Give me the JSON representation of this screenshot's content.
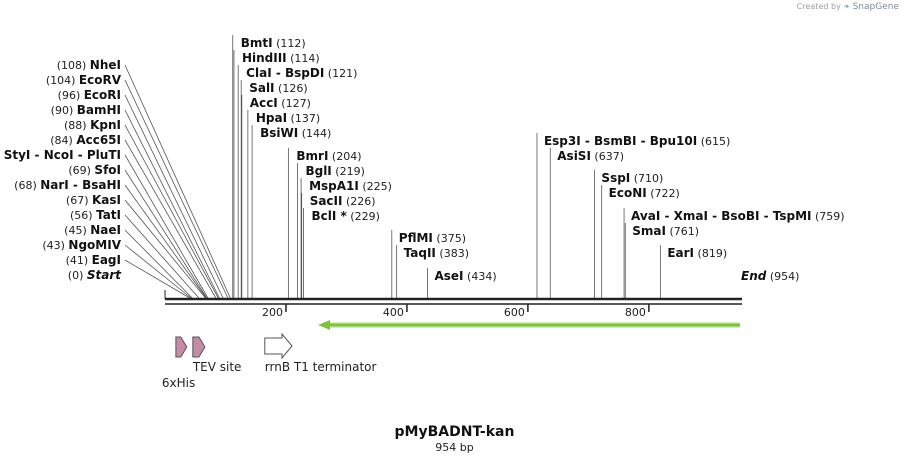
{
  "credit": {
    "prefix": "Created by",
    "brand": "SnapGene",
    "icon": "snapgene-leaf-icon"
  },
  "plasmid": {
    "name": "pMyBADNT-kan",
    "length_label": "954 bp",
    "length": 954
  },
  "colors": {
    "backbone": "#222222",
    "orf": "#7ec040",
    "orf_outline": "#d4ecb8",
    "his_tag": "#c48aa6",
    "tev_site": "#c48aa6",
    "terminator": "#ffffff"
  },
  "scale": {
    "ticks": [
      200,
      400,
      600,
      800
    ]
  },
  "left_sites": [
    {
      "pos": "(0)",
      "label": "Start",
      "loc": 0,
      "terminus": true
    },
    {
      "pos": "(41)",
      "label": "EagI",
      "loc": 41
    },
    {
      "pos": "(43)",
      "label": "NgoMIV",
      "loc": 43
    },
    {
      "pos": "(45)",
      "label": "NaeI",
      "loc": 45
    },
    {
      "pos": "(56)",
      "label": "TatI",
      "loc": 56
    },
    {
      "pos": "(67)",
      "label": "KasI",
      "loc": 67
    },
    {
      "pos": "(68)",
      "label": "NarI  -  BsaHI",
      "loc": 68
    },
    {
      "pos": "(69)",
      "label": "SfoI",
      "loc": 69
    },
    {
      "pos": "(71)",
      "label": "StyI  -  NcoI  -  PluTI",
      "loc": 71
    },
    {
      "pos": "(84)",
      "label": "Acc65I",
      "loc": 84
    },
    {
      "pos": "(88)",
      "label": "KpnI",
      "loc": 88
    },
    {
      "pos": "(90)",
      "label": "BamHI",
      "loc": 90
    },
    {
      "pos": "(96)",
      "label": "EcoRI",
      "loc": 96
    },
    {
      "pos": "(104)",
      "label": "EcoRV",
      "loc": 104
    },
    {
      "pos": "(108)",
      "label": "NheI",
      "loc": 108
    }
  ],
  "right_sites": [
    {
      "label": "BmtI",
      "pos": "(112)",
      "loc": 112
    },
    {
      "label": "HindIII",
      "pos": "(114)",
      "loc": 114
    },
    {
      "label": "ClaI  -  BspDI",
      "pos": "(121)",
      "loc": 121
    },
    {
      "label": "SalI",
      "pos": "(126)",
      "loc": 126
    },
    {
      "label": "AccI",
      "pos": "(127)",
      "loc": 127
    },
    {
      "label": "HpaI",
      "pos": "(137)",
      "loc": 137
    },
    {
      "label": "BsiWI",
      "pos": "(144)",
      "loc": 144
    },
    {
      "label": "BmrI",
      "pos": "(204)",
      "loc": 204
    },
    {
      "label": "BglI",
      "pos": "(219)",
      "loc": 219
    },
    {
      "label": "MspA1I",
      "pos": "(225)",
      "loc": 225
    },
    {
      "label": "SacII",
      "pos": "(226)",
      "loc": 226
    },
    {
      "label": "BclI *",
      "pos": "(229)",
      "loc": 229
    },
    {
      "label": "PflMI",
      "pos": "(375)",
      "loc": 375
    },
    {
      "label": "TaqII",
      "pos": "(383)",
      "loc": 383
    },
    {
      "label": "AseI",
      "pos": "(434)",
      "loc": 434
    },
    {
      "label": "Esp3I  -  BsmBI  -  Bpu10I",
      "pos": "(615)",
      "loc": 615
    },
    {
      "label": "AsiSI",
      "pos": "(637)",
      "loc": 637
    },
    {
      "label": "SspI",
      "pos": "(710)",
      "loc": 710
    },
    {
      "label": "EcoNI",
      "pos": "(722)",
      "loc": 722
    },
    {
      "label": "AvaI  -  XmaI  -  BsoBI  -  TspMI",
      "pos": "(759)",
      "loc": 759
    },
    {
      "label": "SmaI",
      "pos": "(761)",
      "loc": 761
    },
    {
      "label": "EarI",
      "pos": "(819)",
      "loc": 819
    },
    {
      "label": "End",
      "pos": "(954)",
      "loc": 954,
      "terminus": true
    }
  ],
  "features": [
    {
      "name": "6xHis",
      "type": "his-tag",
      "start": 18,
      "end": 36
    },
    {
      "name": "TEV site",
      "type": "tev-site",
      "start": 46,
      "end": 66
    },
    {
      "name": "rrnB T1 terminator",
      "type": "terminator",
      "start": 165,
      "end": 210
    },
    {
      "name": "",
      "type": "orf",
      "start": 253,
      "end": 954,
      "direction": "reverse"
    }
  ]
}
